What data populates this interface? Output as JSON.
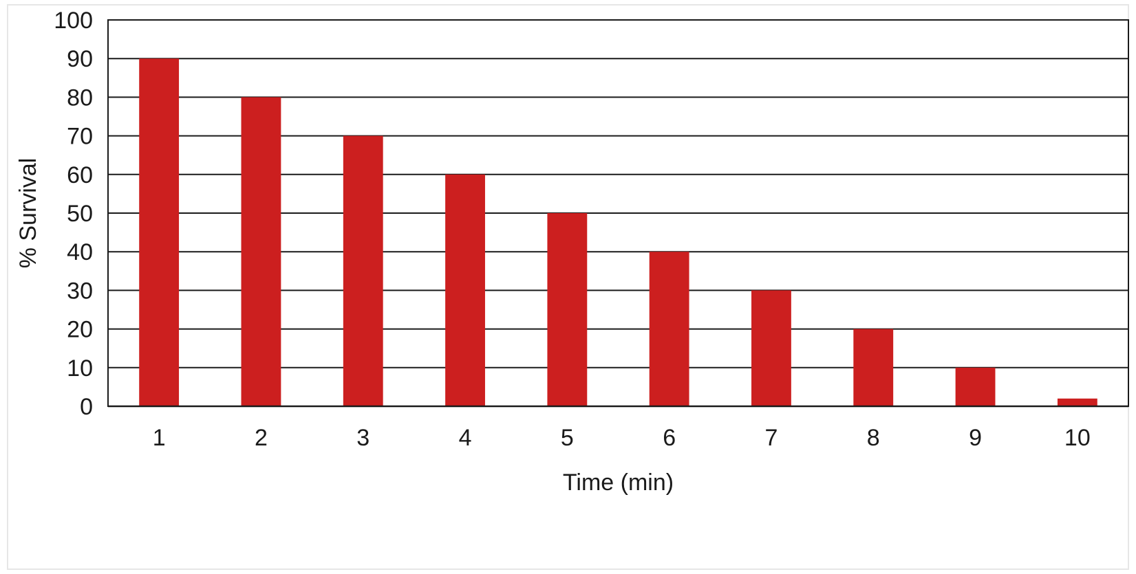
{
  "chart_data": {
    "type": "bar",
    "title": "",
    "xlabel": "Time (min)",
    "ylabel": "% Survival",
    "categories": [
      "1",
      "2",
      "3",
      "4",
      "5",
      "6",
      "7",
      "8",
      "9",
      "10"
    ],
    "values": [
      90,
      80,
      70,
      60,
      50,
      40,
      30,
      20,
      10,
      2
    ],
    "ylim": [
      0,
      100
    ],
    "yticks": [
      "0",
      "10",
      "20",
      "30",
      "40",
      "50",
      "60",
      "70",
      "80",
      "90",
      "100"
    ],
    "grid": true,
    "legend": "none",
    "bar_color": "#cc1f1f"
  }
}
